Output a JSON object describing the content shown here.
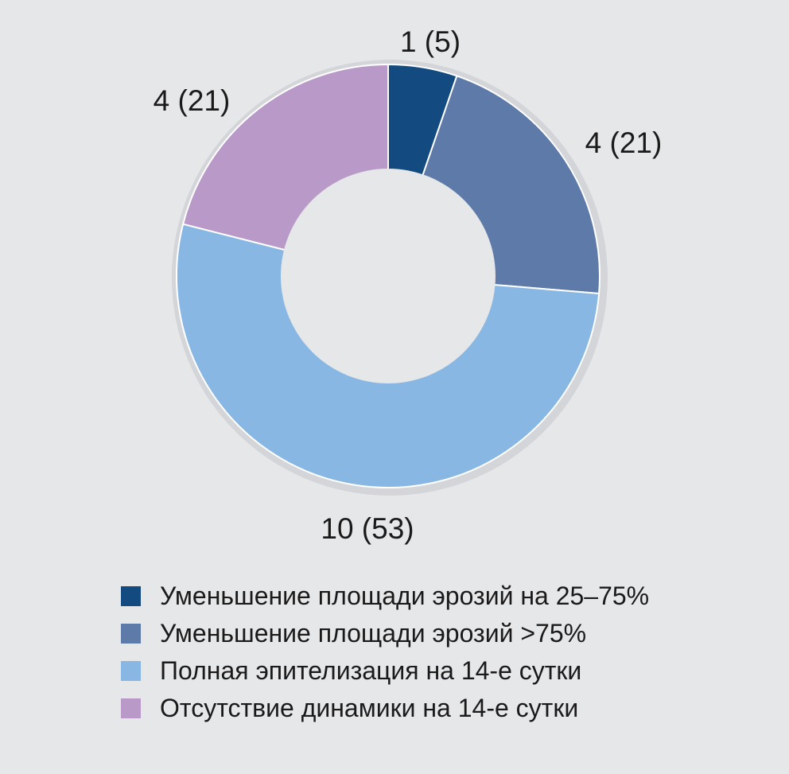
{
  "chart_data": {
    "type": "pie",
    "variant": "donut",
    "title": "",
    "slices": [
      {
        "label": "1 (5)",
        "value": 1,
        "percent": 5,
        "legend": "Уменьшение площади эрозий на 25–75%",
        "color": "#134a80"
      },
      {
        "label": "4 (21)",
        "value": 4,
        "percent": 21,
        "legend": "Уменьшение площади эрозий >75%",
        "color": "#5e7aa9"
      },
      {
        "label": "10 (53)",
        "value": 10,
        "percent": 53,
        "legend": "Полная эпителизация на 14-е сутки",
        "color": "#87b7e2"
      },
      {
        "label": "4 (21)",
        "value": 4,
        "percent": 21,
        "legend": "Отсутствие динамики на 14-е сутки",
        "color": "#b899c8"
      }
    ],
    "start_angle_deg": 0,
    "direction": "clockwise",
    "legend_position": "bottom"
  },
  "colors": {
    "background": "#e6e7e9",
    "hole": "#e6e7e9",
    "separator": "#ffffff",
    "text": "#1a1a1a"
  }
}
